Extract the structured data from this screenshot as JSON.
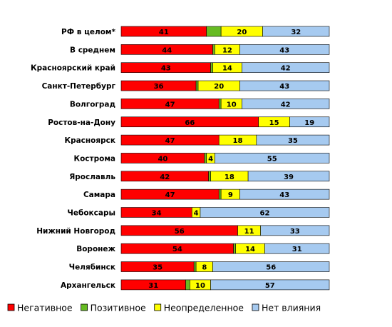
{
  "chart_data": {
    "type": "bar",
    "orientation": "horizontal",
    "stacked": true,
    "xlim": [
      0,
      100
    ],
    "categories": [
      "РФ в целом*",
      "В среднем",
      "Красноярский край",
      "Санкт-Петербург",
      "Волгоград",
      "Ростов-на-Дону",
      "Красноярск",
      "Кострома",
      "Ярославль",
      "Самара",
      "Чебоксары",
      "Нижний Новгород",
      "Воронеж",
      "Челябинск",
      "Архангельск"
    ],
    "series": [
      {
        "name": "Негативное",
        "color": "#ff0000",
        "values": [
          41,
          44,
          43,
          36,
          47,
          66,
          47,
          40,
          42,
          47,
          34,
          56,
          54,
          35,
          31
        ]
      },
      {
        "name": "Позитивное",
        "color": "#66bb22",
        "values": [
          7,
          1,
          1,
          1,
          1,
          0,
          0,
          1,
          1,
          1,
          0,
          0,
          1,
          1,
          2
        ]
      },
      {
        "name": "Неопределенное",
        "color": "#ffff00",
        "values": [
          20,
          12,
          14,
          20,
          10,
          15,
          18,
          4,
          18,
          9,
          4,
          11,
          14,
          8,
          10
        ]
      },
      {
        "name": "Нет влияния",
        "color": "#a6caf0",
        "values": [
          32,
          43,
          42,
          43,
          42,
          19,
          35,
          55,
          39,
          43,
          62,
          33,
          31,
          56,
          57
        ]
      }
    ],
    "labeled_series": [
      "Негативное",
      "Неопределенное",
      "Нет влияния"
    ],
    "legend_position": "bottom",
    "grid": false
  }
}
